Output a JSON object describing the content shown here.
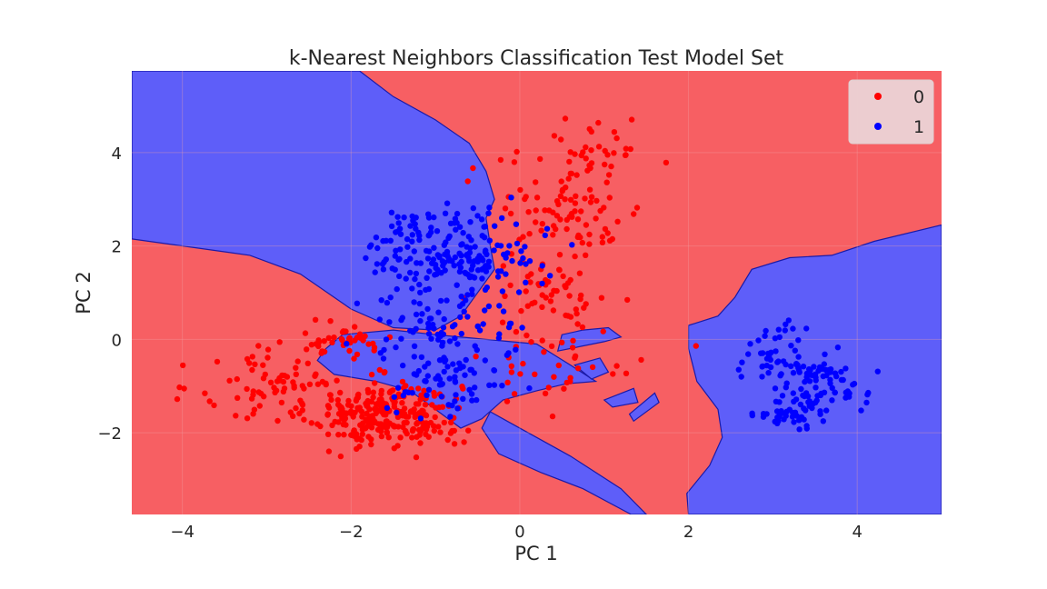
{
  "chart_data": {
    "type": "scatter",
    "title": "k-Nearest Neighbors Classification Test Model Set",
    "xlabel": "PC 1",
    "ylabel": "PC 2",
    "xlim": [
      -4.6,
      5.0
    ],
    "ylim": [
      -3.75,
      5.75
    ],
    "xticks": [
      -4,
      -2,
      0,
      2,
      4
    ],
    "yticks": [
      -2,
      0,
      2,
      4
    ],
    "xtick_labels": [
      "−4",
      "−2",
      "0",
      "2",
      "4"
    ],
    "ytick_labels": [
      "−2",
      "0",
      "2",
      "4"
    ],
    "grid": true,
    "legend_position": "top-right",
    "colors": {
      "class_0_point": "#ff0000",
      "class_1_point": "#0000ff",
      "class_0_region": "#f75f63",
      "class_1_region": "#5e5ef9",
      "boundary": "#1a1aa8",
      "background": "#ffffff",
      "grid": "#f2a3a6"
    },
    "decision_regions": {
      "class_0_background": true,
      "class_1_regions": [
        [
          [
            -4.6,
            5.75
          ],
          [
            -1.9,
            5.75
          ],
          [
            -1.5,
            5.2
          ],
          [
            -1.0,
            4.7
          ],
          [
            -0.6,
            4.2
          ],
          [
            -0.4,
            3.6
          ],
          [
            -0.3,
            3.0
          ],
          [
            -0.4,
            2.6
          ],
          [
            -0.35,
            2.0
          ],
          [
            -0.3,
            1.5
          ],
          [
            -0.5,
            1.0
          ],
          [
            -0.7,
            0.5
          ],
          [
            -1.0,
            0.2
          ],
          [
            -1.5,
            0.25
          ],
          [
            -2.0,
            0.65
          ],
          [
            -2.6,
            1.4
          ],
          [
            -3.2,
            1.8
          ],
          [
            -4.6,
            2.15
          ]
        ],
        [
          [
            -2.1,
            0.1
          ],
          [
            -1.5,
            0.2
          ],
          [
            -1.0,
            0.1
          ],
          [
            -0.4,
            0.0
          ],
          [
            0.2,
            -0.1
          ],
          [
            0.6,
            -0.55
          ],
          [
            0.9,
            -0.9
          ],
          [
            0.55,
            -0.95
          ],
          [
            0.2,
            -1.1
          ],
          [
            -0.2,
            -1.3
          ],
          [
            -0.45,
            -1.7
          ],
          [
            -0.7,
            -1.9
          ],
          [
            -1.0,
            -1.5
          ],
          [
            -1.3,
            -1.1
          ],
          [
            -1.7,
            -0.9
          ],
          [
            -2.2,
            -0.75
          ],
          [
            -2.4,
            -0.45
          ],
          [
            -2.3,
            -0.2
          ]
        ],
        [
          [
            -0.35,
            -1.55
          ],
          [
            -0.15,
            -1.75
          ],
          [
            0.6,
            -2.5
          ],
          [
            1.2,
            -3.2
          ],
          [
            1.5,
            -3.75
          ],
          [
            1.32,
            -3.75
          ],
          [
            0.75,
            -3.2
          ],
          [
            0.25,
            -2.85
          ],
          [
            -0.25,
            -2.45
          ],
          [
            -0.45,
            -1.9
          ]
        ],
        [
          [
            2.0,
            -3.75
          ],
          [
            1.98,
            -3.3
          ],
          [
            2.25,
            -2.7
          ],
          [
            2.4,
            -2.1
          ],
          [
            2.35,
            -1.5
          ],
          [
            2.1,
            -0.9
          ],
          [
            2.0,
            -0.2
          ],
          [
            2.0,
            0.3
          ],
          [
            2.35,
            0.5
          ],
          [
            2.55,
            0.9
          ],
          [
            2.75,
            1.5
          ],
          [
            3.2,
            1.75
          ],
          [
            3.7,
            1.8
          ],
          [
            4.2,
            2.1
          ],
          [
            5.0,
            2.45
          ],
          [
            5.0,
            -3.75
          ]
        ]
      ],
      "class_1_islands": [
        [
          [
            0.45,
            -0.25
          ],
          [
            1.0,
            -0.05
          ],
          [
            1.2,
            0.05
          ],
          [
            1.05,
            0.25
          ],
          [
            0.75,
            0.2
          ],
          [
            0.5,
            0.1
          ]
        ],
        [
          [
            0.65,
            -0.55
          ],
          [
            0.95,
            -0.4
          ],
          [
            1.05,
            -0.7
          ],
          [
            0.85,
            -0.85
          ]
        ],
        [
          [
            1.0,
            -1.3
          ],
          [
            1.35,
            -1.05
          ],
          [
            1.4,
            -1.35
          ],
          [
            1.1,
            -1.45
          ]
        ],
        [
          [
            1.3,
            -1.6
          ],
          [
            1.6,
            -1.15
          ],
          [
            1.65,
            -1.35
          ],
          [
            1.35,
            -1.75
          ]
        ]
      ]
    },
    "series": [
      {
        "name": "0",
        "clusters": [
          {
            "center": [
              -1.6,
              -1.6
            ],
            "spread": [
              0.45,
              0.35
            ],
            "count": 280
          },
          {
            "center": [
              -2.9,
              -0.9
            ],
            "spread": [
              0.45,
              0.45
            ],
            "count": 70
          },
          {
            "center": [
              -2.1,
              0.0
            ],
            "spread": [
              0.3,
              0.15
            ],
            "count": 40
          },
          {
            "center": [
              0.6,
              2.8
            ],
            "spread": [
              0.45,
              0.55
            ],
            "count": 85
          },
          {
            "center": [
              1.0,
              4.1
            ],
            "spread": [
              0.25,
              0.35
            ],
            "count": 30
          },
          {
            "center": [
              0.35,
              0.9
            ],
            "spread": [
              0.35,
              0.45
            ],
            "count": 55
          },
          {
            "center": [
              0.5,
              -0.5
            ],
            "spread": [
              0.55,
              0.35
            ],
            "count": 35
          }
        ]
      },
      {
        "name": "1",
        "clusters": [
          {
            "center": [
              -0.8,
              1.9
            ],
            "spread": [
              0.5,
              0.45
            ],
            "count": 200
          },
          {
            "center": [
              -0.9,
              0.2
            ],
            "spread": [
              0.5,
              0.5
            ],
            "count": 95
          },
          {
            "center": [
              -0.8,
              -1.0
            ],
            "spread": [
              0.35,
              0.35
            ],
            "count": 55
          },
          {
            "center": [
              3.0,
              -0.4
            ],
            "spread": [
              0.2,
              0.35
            ],
            "count": 50
          },
          {
            "center": [
              3.6,
              -1.0
            ],
            "spread": [
              0.25,
              0.35
            ],
            "count": 75
          },
          {
            "center": [
              3.2,
              -1.6
            ],
            "spread": [
              0.2,
              0.12
            ],
            "count": 35
          }
        ]
      }
    ],
    "legend": [
      {
        "label": "0",
        "color": "#ff0000"
      },
      {
        "label": "1",
        "color": "#0000ff"
      }
    ]
  }
}
